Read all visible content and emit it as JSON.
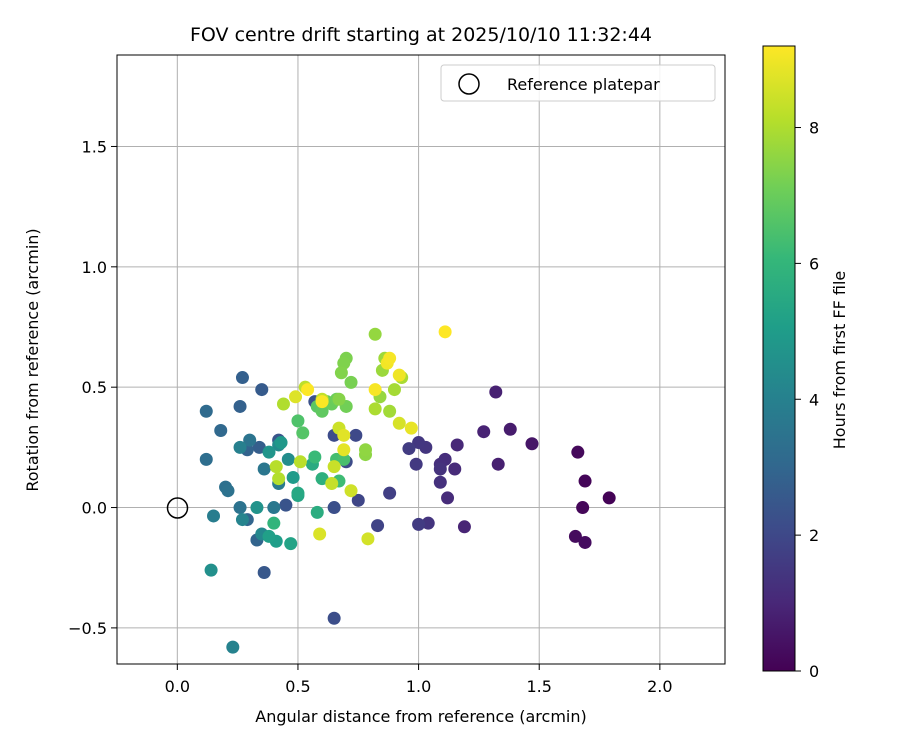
{
  "chart_data": {
    "type": "scatter",
    "title": "FOV centre drift starting at 2025/10/10 11:32:44",
    "xlabel": "Angular distance from reference (arcmin)",
    "ylabel": "Rotation from reference (arcmin)",
    "xlim": [
      -0.25,
      2.27
    ],
    "ylim": [
      -0.65,
      1.88
    ],
    "xticks": [
      0.0,
      0.5,
      1.0,
      1.5,
      2.0
    ],
    "xtick_labels": [
      "0.0",
      "0.5",
      "1.0",
      "1.5",
      "2.0"
    ],
    "yticks": [
      -0.5,
      0.0,
      0.5,
      1.0,
      1.5
    ],
    "ytick_labels": [
      "−0.5",
      "0.0",
      "0.5",
      "1.0",
      "1.5"
    ],
    "grid": true,
    "legend": {
      "position": "top-right",
      "entries": [
        "Reference platepar"
      ]
    },
    "reference_point": {
      "x": 0.0,
      "y": 0.0,
      "label": "Reference platepar"
    },
    "colorbar": {
      "label": "Hours from first FF file",
      "colormap": "viridis",
      "range": [
        0,
        9.2
      ],
      "ticks": [
        0,
        2,
        4,
        6,
        8
      ],
      "tick_labels": [
        "0",
        "2",
        "4",
        "6",
        "8"
      ]
    },
    "points": [
      {
        "x": 1.79,
        "y": 0.04,
        "c": 0.05
      },
      {
        "x": 1.69,
        "y": 0.11,
        "c": 0.1
      },
      {
        "x": 1.68,
        "y": 0.0,
        "c": 0.15
      },
      {
        "x": 1.66,
        "y": 0.23,
        "c": 0.2
      },
      {
        "x": 1.65,
        "y": -0.12,
        "c": 0.25
      },
      {
        "x": 1.69,
        "y": -0.145,
        "c": 0.3
      },
      {
        "x": 1.47,
        "y": 0.265,
        "c": 0.55
      },
      {
        "x": 1.38,
        "y": 0.325,
        "c": 0.7
      },
      {
        "x": 1.33,
        "y": 0.18,
        "c": 0.8
      },
      {
        "x": 1.32,
        "y": 0.48,
        "c": 0.85
      },
      {
        "x": 1.27,
        "y": 0.315,
        "c": 0.9
      },
      {
        "x": 1.19,
        "y": -0.08,
        "c": 0.95
      },
      {
        "x": 1.16,
        "y": 0.26,
        "c": 1.05
      },
      {
        "x": 1.15,
        "y": 0.16,
        "c": 1.1
      },
      {
        "x": 1.12,
        "y": 0.04,
        "c": 1.15
      },
      {
        "x": 1.11,
        "y": 0.2,
        "c": 1.2
      },
      {
        "x": 1.09,
        "y": 0.18,
        "c": 1.25
      },
      {
        "x": 1.09,
        "y": 0.105,
        "c": 1.3
      },
      {
        "x": 1.09,
        "y": 0.16,
        "c": 1.35
      },
      {
        "x": 1.04,
        "y": -0.065,
        "c": 1.4
      },
      {
        "x": 1.03,
        "y": 0.25,
        "c": 1.45
      },
      {
        "x": 1.0,
        "y": 0.27,
        "c": 1.5
      },
      {
        "x": 0.99,
        "y": 0.18,
        "c": 1.55
      },
      {
        "x": 1.0,
        "y": -0.07,
        "c": 1.6
      },
      {
        "x": 0.96,
        "y": 0.245,
        "c": 1.65
      },
      {
        "x": 0.88,
        "y": 0.06,
        "c": 1.75
      },
      {
        "x": 0.83,
        "y": -0.075,
        "c": 1.85
      },
      {
        "x": 0.75,
        "y": 0.03,
        "c": 1.95
      },
      {
        "x": 0.74,
        "y": 0.3,
        "c": 2.05
      },
      {
        "x": 0.7,
        "y": 0.19,
        "c": 2.1
      },
      {
        "x": 0.65,
        "y": 0.3,
        "c": 2.15
      },
      {
        "x": 0.65,
        "y": -0.46,
        "c": 2.2
      },
      {
        "x": 0.65,
        "y": 0.0,
        "c": 2.25
      },
      {
        "x": 0.57,
        "y": 0.44,
        "c": 2.3
      },
      {
        "x": 0.45,
        "y": 0.01,
        "c": 2.4
      },
      {
        "x": 0.42,
        "y": 0.28,
        "c": 2.45
      },
      {
        "x": 0.36,
        "y": -0.27,
        "c": 2.55
      },
      {
        "x": 0.35,
        "y": 0.49,
        "c": 2.65
      },
      {
        "x": 0.34,
        "y": 0.25,
        "c": 2.75
      },
      {
        "x": 0.27,
        "y": 0.54,
        "c": 2.8
      },
      {
        "x": 0.26,
        "y": 0.42,
        "c": 2.85
      },
      {
        "x": 0.29,
        "y": 0.24,
        "c": 2.9
      },
      {
        "x": 0.33,
        "y": -0.135,
        "c": 2.95
      },
      {
        "x": 0.29,
        "y": -0.05,
        "c": 3.0
      },
      {
        "x": 0.18,
        "y": 0.32,
        "c": 3.1
      },
      {
        "x": 0.12,
        "y": 0.4,
        "c": 3.2
      },
      {
        "x": 0.12,
        "y": 0.2,
        "c": 3.3
      },
      {
        "x": 0.2,
        "y": 0.085,
        "c": 3.4
      },
      {
        "x": 0.21,
        "y": 0.07,
        "c": 3.45
      },
      {
        "x": 0.26,
        "y": 0.0,
        "c": 3.5
      },
      {
        "x": 0.3,
        "y": 0.28,
        "c": 3.55
      },
      {
        "x": 0.36,
        "y": 0.16,
        "c": 3.6
      },
      {
        "x": 0.4,
        "y": 0.0,
        "c": 3.7
      },
      {
        "x": 0.42,
        "y": 0.1,
        "c": 3.8
      },
      {
        "x": 0.15,
        "y": -0.035,
        "c": 3.9
      },
      {
        "x": 0.26,
        "y": 0.25,
        "c": 4.0
      },
      {
        "x": 0.23,
        "y": -0.58,
        "c": 4.1
      },
      {
        "x": 0.27,
        "y": -0.05,
        "c": 4.15
      },
      {
        "x": 0.35,
        "y": -0.11,
        "c": 4.3
      },
      {
        "x": 0.42,
        "y": 0.26,
        "c": 4.4
      },
      {
        "x": 0.46,
        "y": 0.2,
        "c": 4.5
      },
      {
        "x": 0.14,
        "y": -0.26,
        "c": 4.6
      },
      {
        "x": 0.33,
        "y": 0.0,
        "c": 4.7
      },
      {
        "x": 0.38,
        "y": 0.23,
        "c": 4.8
      },
      {
        "x": 0.43,
        "y": 0.27,
        "c": 4.9
      },
      {
        "x": 0.48,
        "y": 0.125,
        "c": 5.0
      },
      {
        "x": 0.41,
        "y": -0.14,
        "c": 5.1
      },
      {
        "x": 0.38,
        "y": -0.12,
        "c": 5.2
      },
      {
        "x": 0.47,
        "y": -0.15,
        "c": 5.3
      },
      {
        "x": 0.5,
        "y": 0.05,
        "c": 5.4
      },
      {
        "x": 0.5,
        "y": 0.06,
        "c": 5.5
      },
      {
        "x": 0.56,
        "y": 0.18,
        "c": 5.6
      },
      {
        "x": 0.58,
        "y": -0.02,
        "c": 5.7
      },
      {
        "x": 0.6,
        "y": 0.12,
        "c": 5.8
      },
      {
        "x": 0.4,
        "y": -0.065,
        "c": 6.0
      },
      {
        "x": 0.57,
        "y": 0.21,
        "c": 6.2
      },
      {
        "x": 0.67,
        "y": 0.11,
        "c": 6.3
      },
      {
        "x": 0.66,
        "y": 0.2,
        "c": 6.4
      },
      {
        "x": 0.69,
        "y": 0.2,
        "c": 6.5
      },
      {
        "x": 0.5,
        "y": 0.36,
        "c": 6.6
      },
      {
        "x": 0.52,
        "y": 0.31,
        "c": 6.7
      },
      {
        "x": 0.58,
        "y": 0.42,
        "c": 6.8
      },
      {
        "x": 0.6,
        "y": 0.4,
        "c": 6.9
      },
      {
        "x": 0.62,
        "y": 0.44,
        "c": 7.0
      },
      {
        "x": 0.64,
        "y": 0.43,
        "c": 7.05
      },
      {
        "x": 0.66,
        "y": 0.45,
        "c": 7.1
      },
      {
        "x": 0.7,
        "y": 0.42,
        "c": 7.2
      },
      {
        "x": 0.72,
        "y": 0.52,
        "c": 7.3
      },
      {
        "x": 0.7,
        "y": 0.62,
        "c": 7.35
      },
      {
        "x": 0.69,
        "y": 0.6,
        "c": 7.4
      },
      {
        "x": 0.68,
        "y": 0.56,
        "c": 7.45
      },
      {
        "x": 0.67,
        "y": 0.45,
        "c": 7.5
      },
      {
        "x": 0.78,
        "y": 0.22,
        "c": 7.6
      },
      {
        "x": 0.78,
        "y": 0.24,
        "c": 7.65
      },
      {
        "x": 0.82,
        "y": 0.72,
        "c": 7.7
      },
      {
        "x": 0.84,
        "y": 0.46,
        "c": 7.75
      },
      {
        "x": 0.85,
        "y": 0.57,
        "c": 7.8
      },
      {
        "x": 0.86,
        "y": 0.62,
        "c": 7.85
      },
      {
        "x": 0.88,
        "y": 0.4,
        "c": 7.9
      },
      {
        "x": 0.9,
        "y": 0.49,
        "c": 7.95
      },
      {
        "x": 0.93,
        "y": 0.54,
        "c": 8.0
      },
      {
        "x": 0.82,
        "y": 0.41,
        "c": 8.05
      },
      {
        "x": 0.44,
        "y": 0.43,
        "c": 8.1
      },
      {
        "x": 0.42,
        "y": 0.12,
        "c": 8.15
      },
      {
        "x": 0.41,
        "y": 0.17,
        "c": 8.2
      },
      {
        "x": 0.51,
        "y": 0.19,
        "c": 8.25
      },
      {
        "x": 0.53,
        "y": 0.5,
        "c": 8.3
      },
      {
        "x": 0.6,
        "y": 0.45,
        "c": 8.35
      },
      {
        "x": 0.64,
        "y": 0.1,
        "c": 8.4
      },
      {
        "x": 0.65,
        "y": 0.17,
        "c": 8.45
      },
      {
        "x": 0.67,
        "y": 0.33,
        "c": 8.5
      },
      {
        "x": 0.72,
        "y": 0.07,
        "c": 8.55
      },
      {
        "x": 0.79,
        "y": -0.13,
        "c": 8.6
      },
      {
        "x": 0.92,
        "y": 0.35,
        "c": 8.65
      },
      {
        "x": 0.59,
        "y": -0.11,
        "c": 8.7
      },
      {
        "x": 0.49,
        "y": 0.46,
        "c": 8.75
      },
      {
        "x": 0.69,
        "y": 0.3,
        "c": 8.8
      },
      {
        "x": 0.69,
        "y": 0.24,
        "c": 8.85
      },
      {
        "x": 0.97,
        "y": 0.33,
        "c": 8.9
      },
      {
        "x": 0.92,
        "y": 0.55,
        "c": 9.0
      },
      {
        "x": 0.87,
        "y": 0.6,
        "c": 9.05
      },
      {
        "x": 0.88,
        "y": 0.62,
        "c": 9.1
      },
      {
        "x": 0.82,
        "y": 0.49,
        "c": 9.12
      },
      {
        "x": 0.6,
        "y": 0.44,
        "c": 9.15
      },
      {
        "x": 0.54,
        "y": 0.49,
        "c": 9.18
      },
      {
        "x": 1.11,
        "y": 0.73,
        "c": 9.2
      }
    ]
  }
}
